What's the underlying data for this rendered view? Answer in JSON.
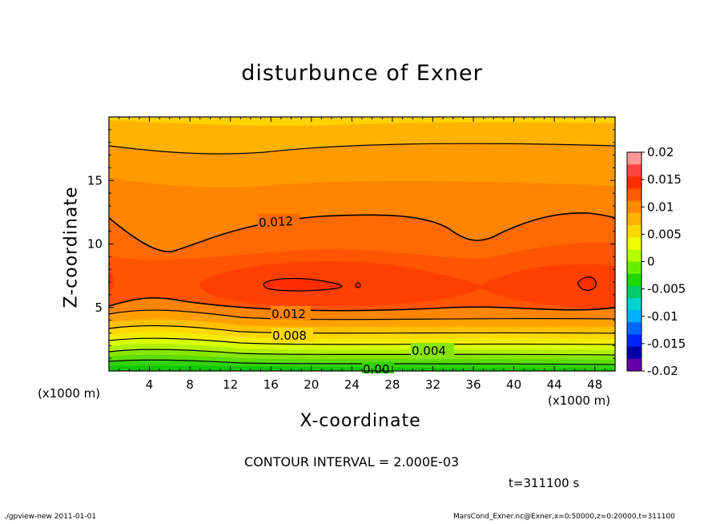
{
  "chart_data": {
    "type": "contour",
    "title": "disturbunce of Exner",
    "xlabel": "X-coordinate",
    "ylabel": "Z-coordinate",
    "x_unit": "(x1000 m)",
    "z_unit": "(x1000 m)",
    "xlim": [
      0,
      50
    ],
    "ylim": [
      0,
      20
    ],
    "x_ticks": [
      4,
      8,
      12,
      16,
      20,
      24,
      28,
      32,
      36,
      40,
      44,
      48
    ],
    "y_ticks": [
      5,
      10,
      15
    ],
    "contour_interval_text": "CONTOUR INTERVAL = 2.000E-03",
    "time_text": "t=311100 s",
    "colorbar": {
      "ticks": [
        "0.02",
        "0.015",
        "0.01",
        "0.005",
        "0",
        "-0.005",
        "-0.01",
        "-0.015",
        "-0.02"
      ],
      "range": [
        -0.02,
        0.02
      ],
      "colors": [
        "#ff9999",
        "#ff4444",
        "#ff2e00",
        "#ff5c00",
        "#ff8a00",
        "#ffb300",
        "#ffd800",
        "#eeff00",
        "#b4ff00",
        "#66f000",
        "#1ed800",
        "#00cc66",
        "#00d2d2",
        "#00b0ff",
        "#0066ff",
        "#0022ff",
        "#0000aa",
        "#6600aa"
      ]
    },
    "contour_line_labels": [
      {
        "text": "0.012",
        "x": 23,
        "z": 11.6
      },
      {
        "text": "0.012",
        "x": 22,
        "z": 4.5
      },
      {
        "text": "0.008",
        "x": 20,
        "z": 2.8
      },
      {
        "text": "0.004",
        "x": 32,
        "z": 1.5
      },
      {
        "text": "0.00",
        "x": 26,
        "z": 0.1
      }
    ]
  },
  "footer": {
    "left": "./gpview-new  2011-01-01",
    "right": "MarsCond_Exner.nc@Exner,x=0:50000,z=0:20000,t=311100"
  }
}
